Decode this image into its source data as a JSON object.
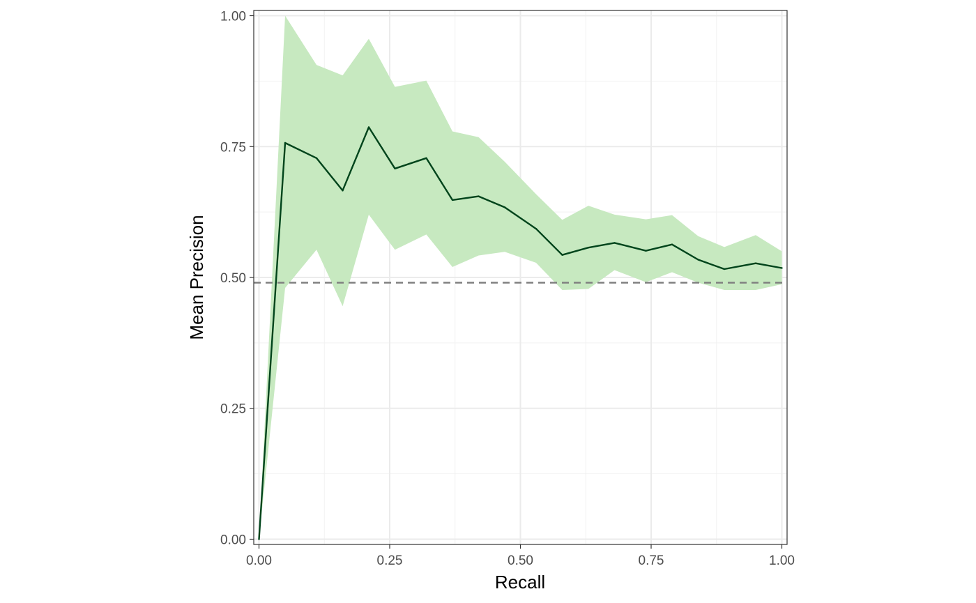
{
  "chart_data": {
    "type": "line",
    "title": "",
    "xlabel": "Recall",
    "ylabel": "Mean Precision",
    "xlim": [
      -0.01,
      1.01
    ],
    "ylim": [
      -0.01,
      1.01
    ],
    "x_ticks": [
      0,
      0.25,
      0.5,
      0.75,
      1
    ],
    "x_tick_labels": [
      "0.00",
      "0.25",
      "0.50",
      "0.75",
      "1.00"
    ],
    "y_ticks": [
      0,
      0.25,
      0.5,
      0.75,
      1
    ],
    "y_tick_labels": [
      "0.00",
      "0.25",
      "0.50",
      "0.75",
      "1.00"
    ],
    "grid": true,
    "series": [
      {
        "x": [
          0.0,
          0.05,
          0.11,
          0.16,
          0.21,
          0.26,
          0.32,
          0.37,
          0.42,
          0.47,
          0.53,
          0.58,
          0.63,
          0.68,
          0.74,
          0.79,
          0.84,
          0.89,
          0.95,
          1.0
        ],
        "y": [
          0.0,
          0.757,
          0.728,
          0.666,
          0.787,
          0.708,
          0.728,
          0.648,
          0.655,
          0.634,
          0.593,
          0.543,
          0.557,
          0.566,
          0.551,
          0.563,
          0.534,
          0.516,
          0.527,
          0.518
        ],
        "lower": [
          0.0,
          0.48,
          0.553,
          0.445,
          0.62,
          0.553,
          0.582,
          0.52,
          0.542,
          0.549,
          0.528,
          0.476,
          0.478,
          0.514,
          0.491,
          0.51,
          0.49,
          0.476,
          0.476,
          0.487
        ],
        "upper": [
          0.0,
          1.0,
          0.906,
          0.886,
          0.956,
          0.864,
          0.876,
          0.779,
          0.768,
          0.721,
          0.659,
          0.61,
          0.637,
          0.62,
          0.611,
          0.619,
          0.579,
          0.558,
          0.581,
          0.55
        ],
        "line_color": "#00441b",
        "band_color": "#c7e9c0"
      }
    ],
    "reference_line": {
      "y": 0.49,
      "style": "dashed",
      "color": "#808080"
    }
  }
}
